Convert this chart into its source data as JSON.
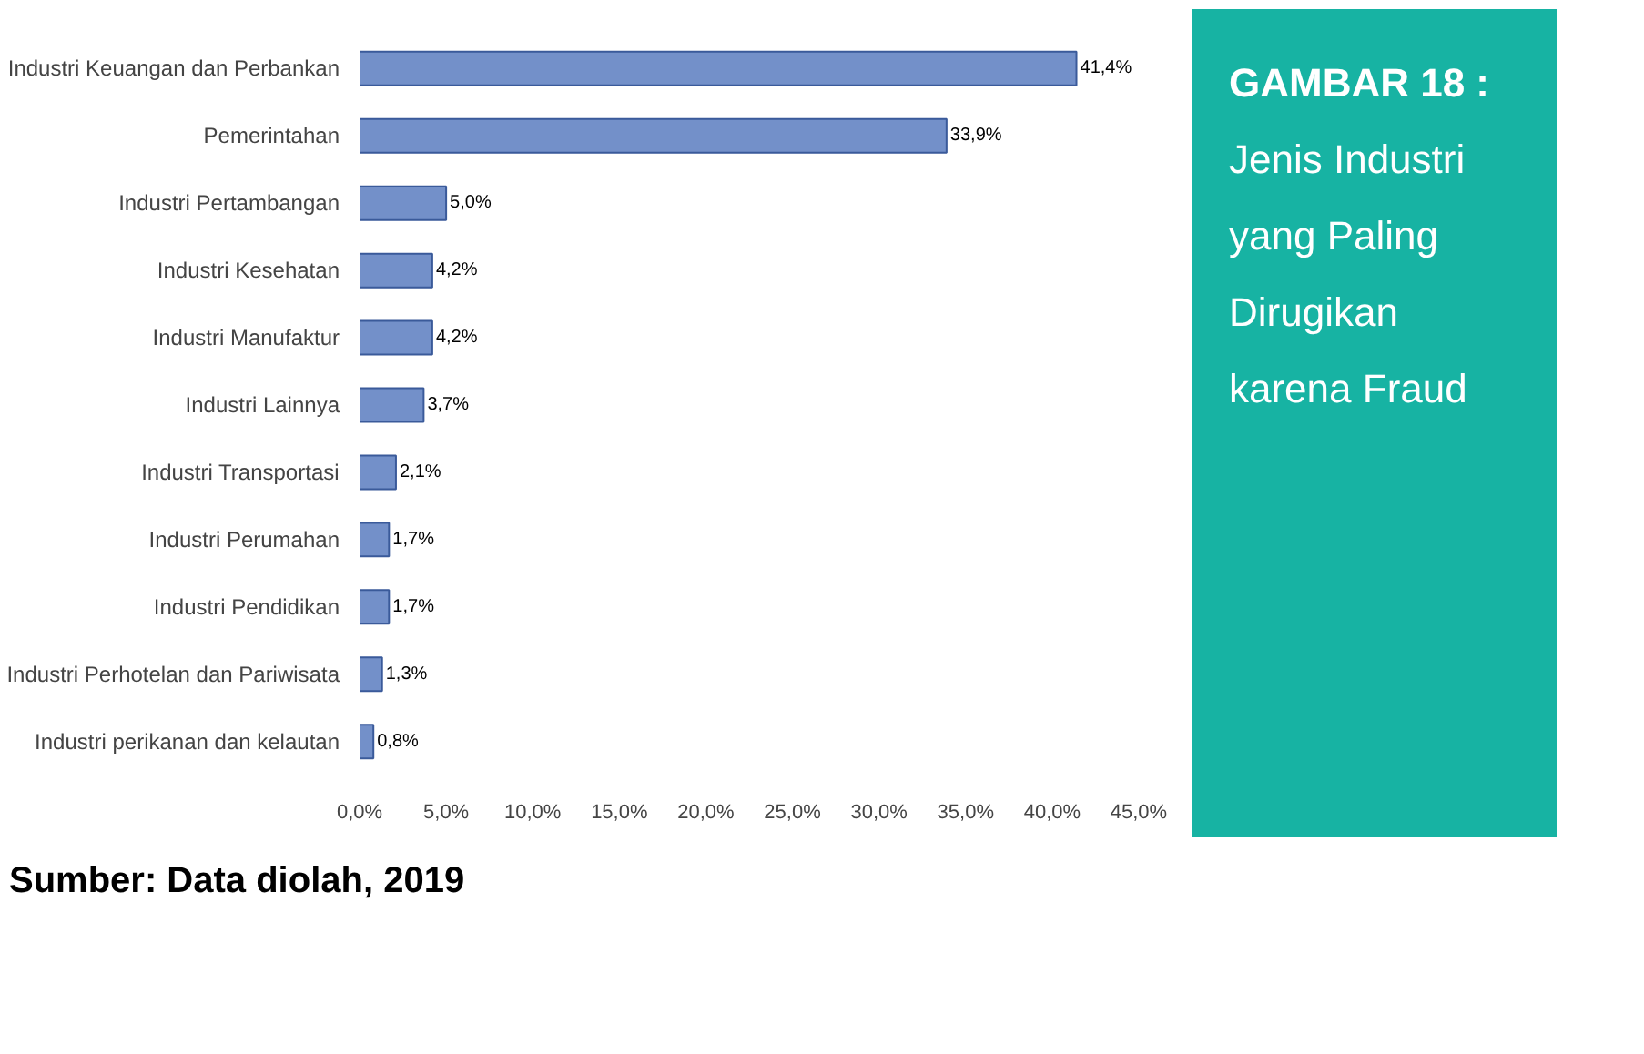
{
  "chart_data": {
    "type": "bar",
    "orientation": "horizontal",
    "title": "GAMBAR 18 :",
    "subtitle": "Jenis Industri yang Paling Dirugikan karena Fraud",
    "categories": [
      "Industri Keuangan dan Perbankan",
      "Pemerintahan",
      "Industri Pertambangan",
      "Industri Kesehatan",
      "Industri Manufaktur",
      "Industri Lainnya",
      "Industri Transportasi",
      "Industri Perumahan",
      "Industri Pendidikan",
      "Industri Perhotelan dan Pariwisata",
      "Industri perikanan dan kelautan"
    ],
    "values": [
      41.4,
      33.9,
      5.0,
      4.2,
      4.2,
      3.7,
      2.1,
      1.7,
      1.7,
      1.3,
      0.8
    ],
    "value_labels": [
      "41,4%",
      "33,9%",
      "5,0%",
      "4,2%",
      "4,2%",
      "3,7%",
      "2,1%",
      "1,7%",
      "1,7%",
      "1,3%",
      "0,8%"
    ],
    "color": "#7390c9",
    "xlim": [
      0,
      45
    ],
    "xticks": [
      {
        "value": 0,
        "label": "0,0%"
      },
      {
        "value": 5,
        "label": "5,0%"
      },
      {
        "value": 10,
        "label": "10,0%"
      },
      {
        "value": 15,
        "label": "15,0%"
      },
      {
        "value": 20,
        "label": "20,0%"
      },
      {
        "value": 25,
        "label": "25,0%"
      },
      {
        "value": 30,
        "label": "30,0%"
      },
      {
        "value": 35,
        "label": "35,0%"
      },
      {
        "value": 40,
        "label": "40,0%"
      },
      {
        "value": 45,
        "label": "45,0%"
      }
    ],
    "annotations": [
      "Sumber: Data diolah, 2019"
    ]
  }
}
